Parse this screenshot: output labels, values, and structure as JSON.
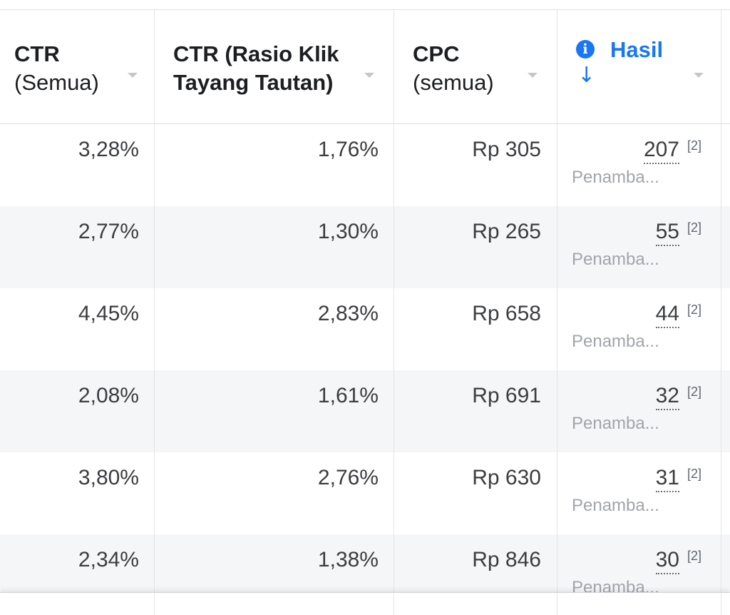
{
  "columns": [
    {
      "line1": "CTR",
      "line2": "(Semua)"
    },
    {
      "line1": "CTR (Rasio Klik",
      "line2": "Tayang Tautan)"
    },
    {
      "line1": "CPC",
      "line2": "(semua)"
    },
    {
      "label": "Hasil",
      "sort_arrow": "↓",
      "info_glyph": "i"
    }
  ],
  "rows": [
    {
      "ctr_all": "3,28%",
      "ctr_link": "1,76%",
      "cpc": "Rp 305",
      "result": "207",
      "footnote": "[2]",
      "result_type": "Penamba..."
    },
    {
      "ctr_all": "2,77%",
      "ctr_link": "1,30%",
      "cpc": "Rp 265",
      "result": "55",
      "footnote": "[2]",
      "result_type": "Penamba..."
    },
    {
      "ctr_all": "4,45%",
      "ctr_link": "2,83%",
      "cpc": "Rp 658",
      "result": "44",
      "footnote": "[2]",
      "result_type": "Penamba..."
    },
    {
      "ctr_all": "2,08%",
      "ctr_link": "1,61%",
      "cpc": "Rp 691",
      "result": "32",
      "footnote": "[2]",
      "result_type": "Penamba..."
    },
    {
      "ctr_all": "3,80%",
      "ctr_link": "2,76%",
      "cpc": "Rp 630",
      "result": "31",
      "footnote": "[2]",
      "result_type": "Penamba..."
    },
    {
      "ctr_all": "2,34%",
      "ctr_link": "1,38%",
      "cpc": "Rp 846",
      "result": "30",
      "footnote": "[2]",
      "result_type": "Penamba..."
    }
  ],
  "icons": {
    "info": "info-icon",
    "sort": "sort-caret-icon",
    "arrow": "arrow-down-icon"
  },
  "colors": {
    "accent": "#1877f2",
    "text": "#1c1e21",
    "muted": "#a1a5ab",
    "row_alt": "#f5f6f7",
    "border": "#e3e5e8"
  }
}
